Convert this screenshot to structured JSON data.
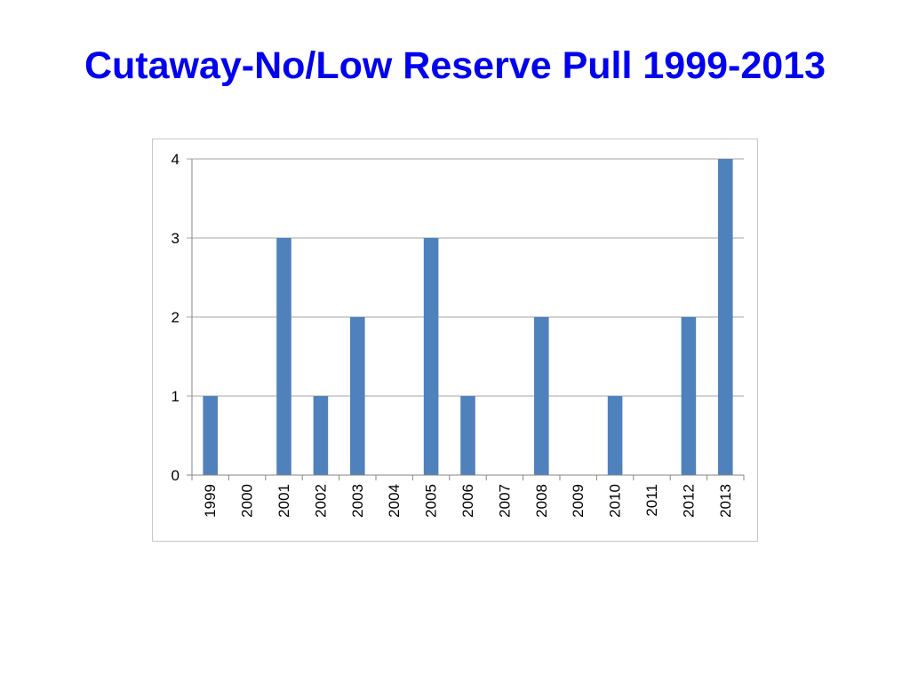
{
  "title": "Cutaway-No/Low Reserve Pull 1999-2013",
  "colors": {
    "title": "#0000ee",
    "bar": "#4f81bd",
    "gridline": "#a6a6a6",
    "axis": "#868686"
  },
  "chart_data": {
    "type": "bar",
    "title": "",
    "xlabel": "",
    "ylabel": "",
    "categories": [
      "1999",
      "2000",
      "2001",
      "2002",
      "2003",
      "2004",
      "2005",
      "2006",
      "2007",
      "2008",
      "2009",
      "2010",
      "2011",
      "2012",
      "2013"
    ],
    "values": [
      1,
      0,
      3,
      1,
      2,
      0,
      3,
      1,
      0,
      2,
      0,
      1,
      0,
      2,
      4
    ],
    "ylim": [
      0,
      4
    ],
    "yticks": [
      "0",
      "1",
      "2",
      "3",
      "4"
    ],
    "grid": true,
    "legend": "none"
  }
}
